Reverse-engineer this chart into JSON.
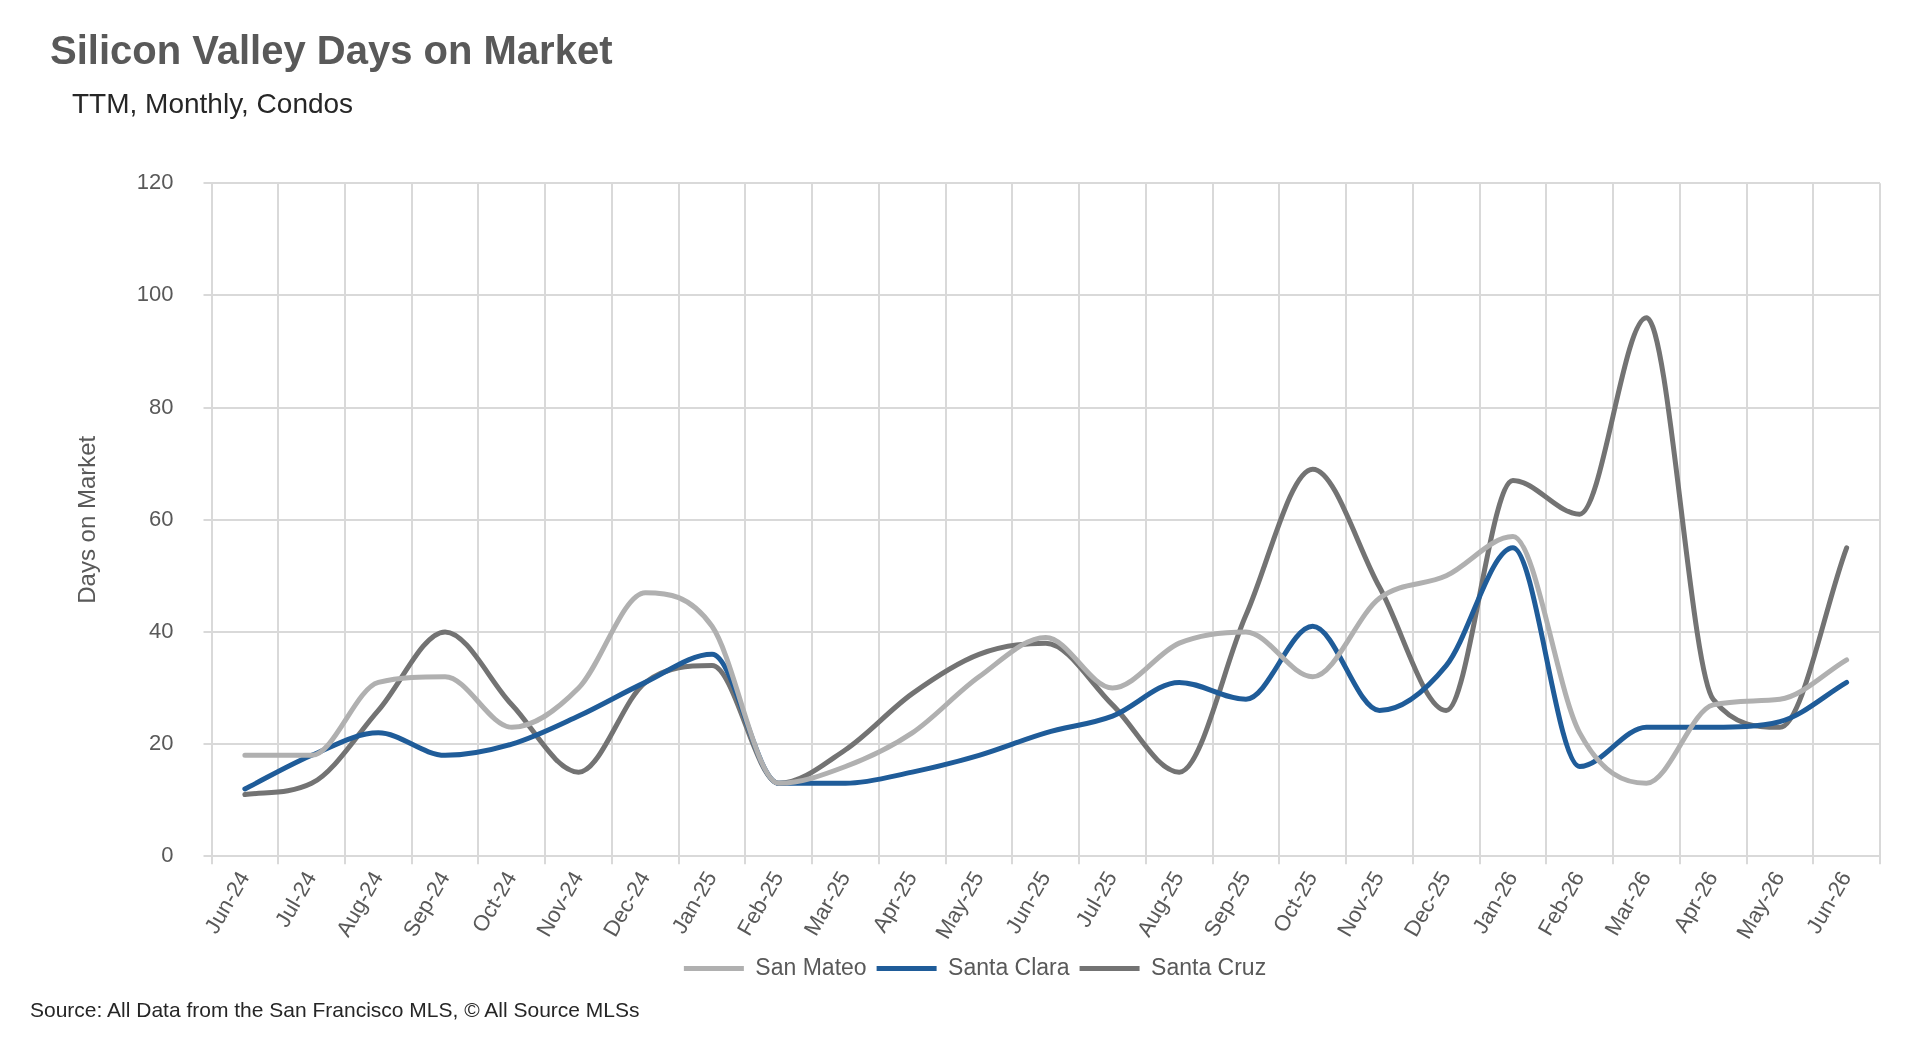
{
  "chart_data": {
    "type": "line",
    "title": "Silicon Valley Days on Market",
    "subtitle": "TTM, Monthly, Condos",
    "ylabel": "Days on Market",
    "categories": [
      "Jun-24",
      "Jul-24",
      "Aug-24",
      "Sep-24",
      "Oct-24",
      "Nov-24",
      "Dec-24",
      "Jan-25",
      "Feb-25",
      "Mar-25",
      "Apr-25",
      "May-25",
      "Jun-25",
      "Jul-25",
      "Aug-25",
      "Sep-25",
      "Oct-25",
      "Nov-25",
      "Dec-25",
      "Jan-26",
      "Feb-26",
      "Mar-26",
      "Apr-26",
      "May-26",
      "Jun-26"
    ],
    "series": [
      {
        "name": "San Mateo",
        "color": "#b0b0b0",
        "values": [
          18,
          18,
          31,
          32,
          23,
          30,
          47,
          41,
          13,
          16,
          22,
          32,
          39,
          30,
          38,
          40,
          32,
          46,
          50,
          57,
          22,
          13,
          27,
          28,
          35
        ]
      },
      {
        "name": "Santa Clara",
        "color": "#1f5c99",
        "values": [
          12,
          18,
          22,
          18,
          20,
          25,
          31,
          36,
          13,
          13,
          15,
          18,
          22,
          25,
          31,
          28,
          41,
          26,
          34,
          55,
          16,
          23,
          23,
          24,
          31
        ]
      },
      {
        "name": "Santa Cruz",
        "color": "#737373",
        "values": [
          11,
          13,
          26,
          40,
          27,
          15,
          31,
          34,
          13,
          19,
          29,
          36,
          38,
          27,
          15,
          43,
          69,
          48,
          26,
          67,
          61,
          96,
          28,
          23,
          55
        ]
      }
    ],
    "ylim": [
      0,
      120
    ],
    "yticks": [
      0,
      20,
      40,
      60,
      80,
      100,
      120
    ],
    "grid": true,
    "legend": "bottom",
    "marker": "none",
    "line_style": "solid",
    "annotations": [
      "Source: All Data from the San Francisco MLS, © All Source MLSs"
    ]
  }
}
